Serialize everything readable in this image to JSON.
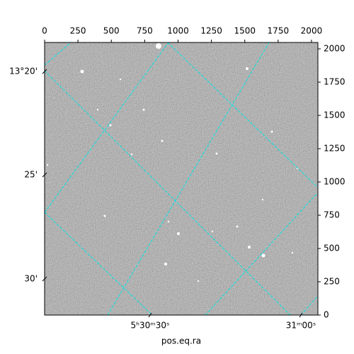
{
  "chart_data": {
    "type": "image",
    "xlabel": "pos.eq.ra",
    "xlim": [
      0,
      2048
    ],
    "xticks": [
      0,
      250,
      500,
      750,
      1000,
      1250,
      1500,
      1750,
      2000
    ],
    "ylim": [
      0,
      2048
    ],
    "yticks": [
      0,
      250,
      500,
      750,
      1000,
      1250,
      1500,
      1750,
      2000
    ],
    "dec_tick_labels": [
      "13°20'",
      "25'",
      "30'"
    ],
    "ra_tick_labels": [
      "5ʰ30ᵐ30ˢ",
      "31ᵐ00ˢ"
    ],
    "grid_color": "#00e5e5"
  }
}
